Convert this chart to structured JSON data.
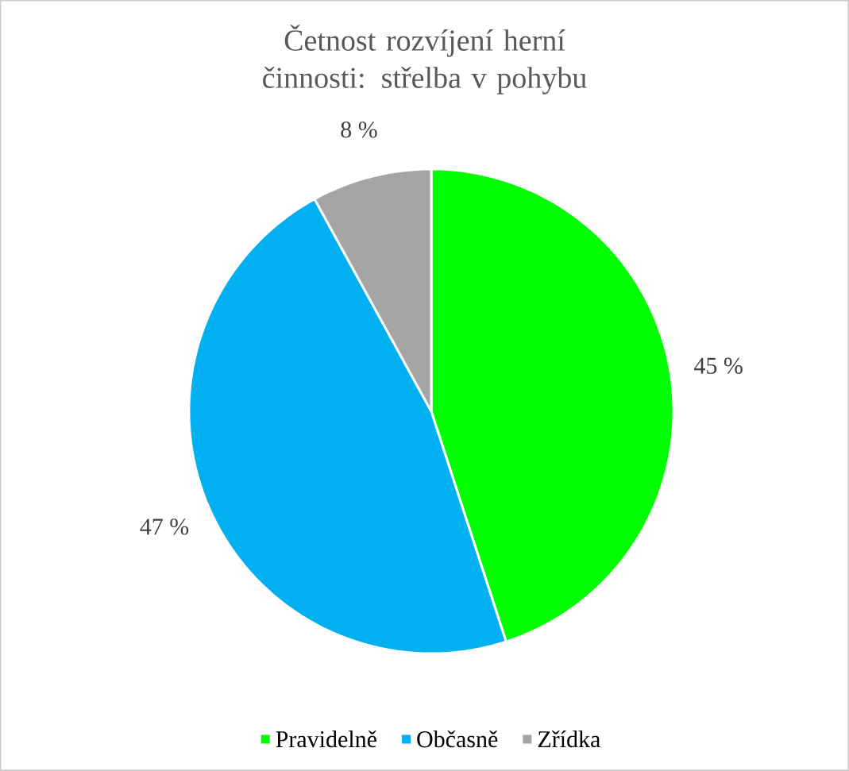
{
  "chart_data": {
    "type": "pie",
    "title": "Četnost rozvíjení herní činnosti: střelba v pohybu",
    "categories": [
      "Pravidelně",
      "Občasně",
      "Zřídka"
    ],
    "values": [
      45,
      47,
      8
    ],
    "colors": [
      "#00ff00",
      "#00b0f0",
      "#a5a5a5"
    ],
    "value_labels": [
      "45 %",
      "47 %",
      "8 %"
    ],
    "legend": "bottom"
  }
}
